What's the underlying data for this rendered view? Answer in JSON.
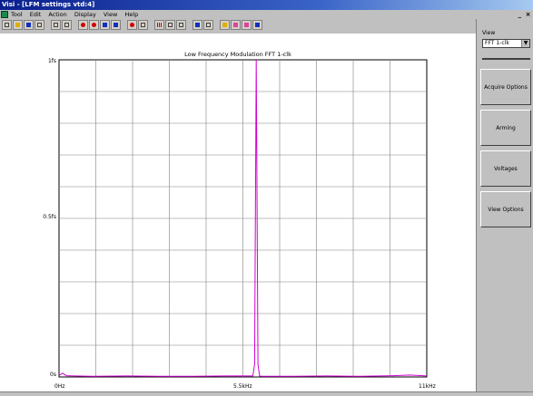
{
  "window": {
    "title": "Visi - [LFM settings vtd:4]",
    "controls": [
      "_",
      "×"
    ]
  },
  "menu": [
    "Tool",
    "Edit",
    "Action",
    "Display",
    "View",
    "Help"
  ],
  "side": {
    "view_label": "View",
    "view_value": "FFT 1-clk",
    "buttons": [
      "Acquire Options",
      "Arming",
      "Voltages",
      "View Options"
    ]
  },
  "chart_data": {
    "type": "line",
    "title": "Low Frequency Modulation FFT 1-clk",
    "xlabel": "",
    "ylabel": "",
    "x_tick_labels": [
      "0Hz",
      "5.5kHz",
      "11kHz"
    ],
    "y_tick_labels": [
      "0s",
      "0.5fs",
      "1fs"
    ],
    "xlim": [
      0,
      11000
    ],
    "ylim": [
      0,
      1
    ],
    "grid": true,
    "series": [
      {
        "color": "#d000d0",
        "x": [
          0,
          110,
          220,
          440,
          1000,
          2000,
          3000,
          4000,
          5000,
          5800,
          5850,
          5900,
          5950,
          6000,
          6050,
          6100,
          7000,
          8000,
          9000,
          10000,
          10500,
          11000
        ],
        "y": [
          0.005,
          0.012,
          0.004,
          0.003,
          0.002,
          0.003,
          0.002,
          0.002,
          0.003,
          0.003,
          0.04,
          1.0,
          0.04,
          0.003,
          0.002,
          0.002,
          0.002,
          0.003,
          0.002,
          0.004,
          0.006,
          0.003
        ]
      }
    ]
  }
}
